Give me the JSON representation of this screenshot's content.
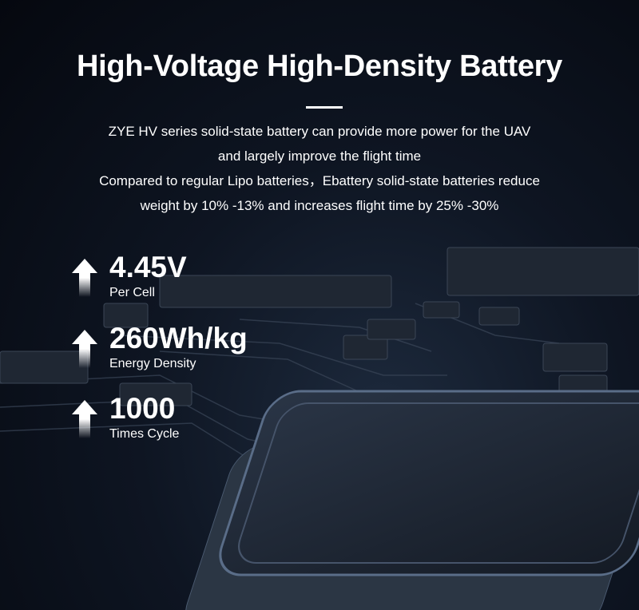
{
  "title": "High-Voltage High-Density Battery",
  "description": [
    "ZYE HV series solid-state battery can provide more power for the UAV",
    "and largely improve the flight time",
    "Compared to regular Lipo batteries，Ebattery solid-state batteries reduce",
    "weight by 10% -13% and increases flight time by 25% -30%"
  ],
  "stats": [
    {
      "value": "4.45V",
      "label": "Per Cell",
      "icon": "arrow-up-icon"
    },
    {
      "value": "260Wh/kg",
      "label": "Energy Density",
      "icon": "arrow-up-icon"
    },
    {
      "value": "1000",
      "label": "Times Cycle",
      "icon": "arrow-up-icon"
    }
  ]
}
